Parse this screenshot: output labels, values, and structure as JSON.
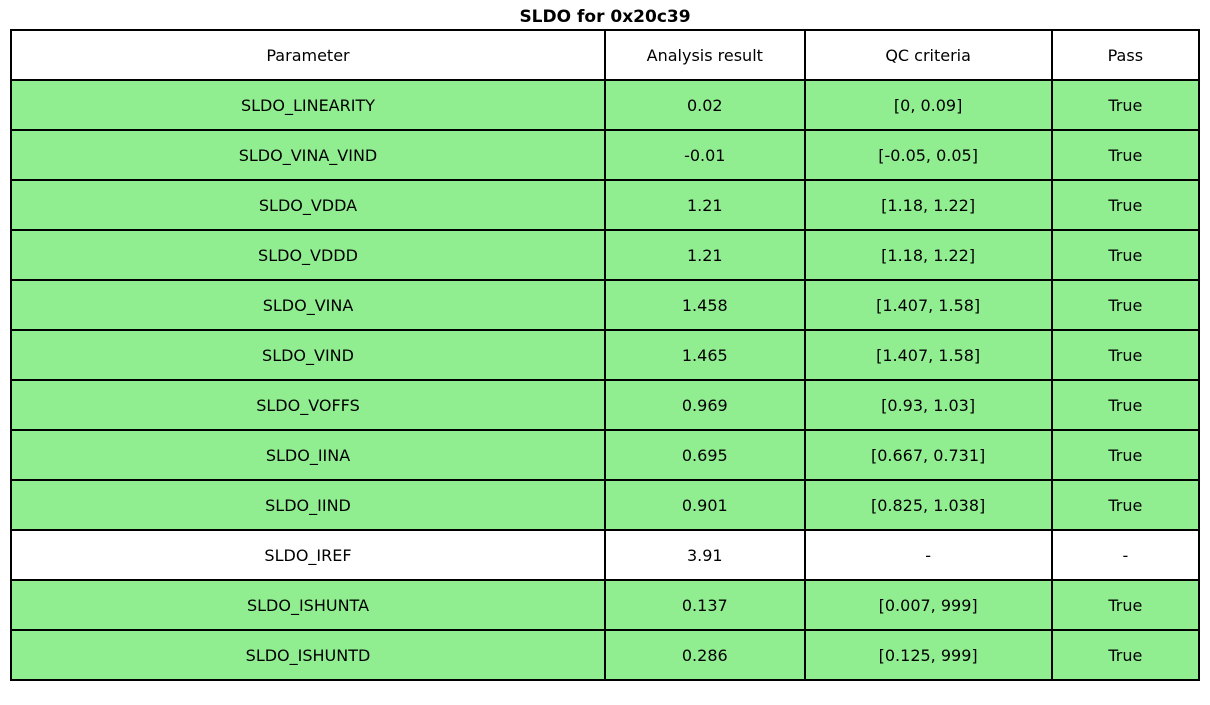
{
  "title": "SLDO for 0x20c39",
  "chart_data": {
    "type": "table",
    "title": "SLDO for 0x20c39",
    "columns": [
      "Parameter",
      "Analysis result",
      "QC criteria",
      "Pass"
    ],
    "rows": [
      {
        "parameter": "SLDO_LINEARITY",
        "result": "0.02",
        "qc": "[0, 0.09]",
        "pass": "True",
        "highlight": true
      },
      {
        "parameter": "SLDO_VINA_VIND",
        "result": "-0.01",
        "qc": "[-0.05, 0.05]",
        "pass": "True",
        "highlight": true
      },
      {
        "parameter": "SLDO_VDDA",
        "result": "1.21",
        "qc": "[1.18, 1.22]",
        "pass": "True",
        "highlight": true
      },
      {
        "parameter": "SLDO_VDDD",
        "result": "1.21",
        "qc": "[1.18, 1.22]",
        "pass": "True",
        "highlight": true
      },
      {
        "parameter": "SLDO_VINA",
        "result": "1.458",
        "qc": "[1.407, 1.58]",
        "pass": "True",
        "highlight": true
      },
      {
        "parameter": "SLDO_VIND",
        "result": "1.465",
        "qc": "[1.407, 1.58]",
        "pass": "True",
        "highlight": true
      },
      {
        "parameter": "SLDO_VOFFS",
        "result": "0.969",
        "qc": "[0.93, 1.03]",
        "pass": "True",
        "highlight": true
      },
      {
        "parameter": "SLDO_IINA",
        "result": "0.695",
        "qc": "[0.667, 0.731]",
        "pass": "True",
        "highlight": true
      },
      {
        "parameter": "SLDO_IIND",
        "result": "0.901",
        "qc": "[0.825, 1.038]",
        "pass": "True",
        "highlight": true
      },
      {
        "parameter": "SLDO_IREF",
        "result": "3.91",
        "qc": "-",
        "pass": "-",
        "highlight": false
      },
      {
        "parameter": "SLDO_ISHUNTA",
        "result": "0.137",
        "qc": "[0.007, 999]",
        "pass": "True",
        "highlight": true
      },
      {
        "parameter": "SLDO_ISHUNTD",
        "result": "0.286",
        "qc": "[0.125, 999]",
        "pass": "True",
        "highlight": true
      }
    ],
    "colors": {
      "pass_row_background": "#90ee90",
      "neutral_row_background": "#ffffff",
      "border": "#000000",
      "text": "#000000"
    },
    "layout": {
      "grid": true,
      "legend": false
    }
  }
}
